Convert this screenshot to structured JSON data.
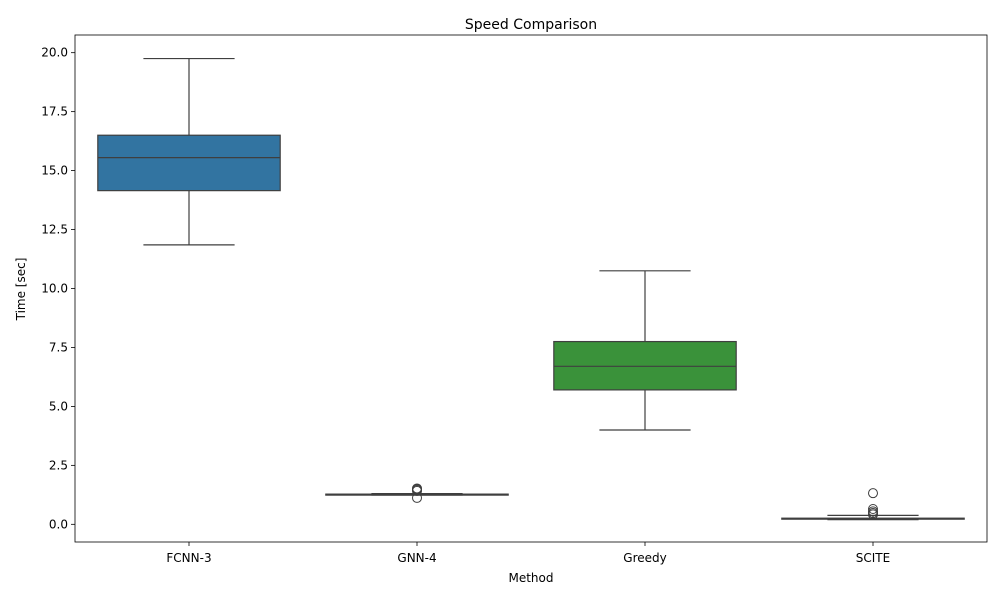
{
  "chart_data": {
    "type": "box",
    "title": "Speed Comparison",
    "xlabel": "Method",
    "ylabel": "Time [sec]",
    "ylim": [
      -0.75,
      20.75
    ],
    "yticks": [
      0.0,
      2.5,
      5.0,
      7.5,
      10.0,
      12.5,
      15.0,
      17.5,
      20.0
    ],
    "ytick_labels": [
      "0.0",
      "2.5",
      "5.0",
      "7.5",
      "10.0",
      "12.5",
      "15.0",
      "17.5",
      "20.0"
    ],
    "grid": false,
    "categories": [
      "FCNN-3",
      "GNN-4",
      "Greedy",
      "SCITE"
    ],
    "boxes": [
      {
        "category": "FCNN-3",
        "whisker_low": 11.85,
        "q1": 14.15,
        "median": 15.55,
        "q3": 16.5,
        "whisker_high": 19.75,
        "outliers": [],
        "color": "#3274a1"
      },
      {
        "category": "GNN-4",
        "whisker_low": 1.24,
        "q1": 1.26,
        "median": 1.27,
        "q3": 1.28,
        "whisker_high": 1.3,
        "outliers": [
          1.12,
          1.42,
          1.46,
          1.5,
          1.52
        ],
        "color": "#e1812c"
      },
      {
        "category": "Greedy",
        "whisker_low": 4.0,
        "q1": 5.7,
        "median": 6.7,
        "q3": 7.75,
        "whisker_high": 10.75,
        "outliers": [],
        "color": "#3a923a"
      },
      {
        "category": "SCITE",
        "whisker_low": 0.2,
        "q1": 0.22,
        "median": 0.24,
        "q3": 0.26,
        "whisker_high": 0.38,
        "outliers": [
          0.42,
          0.48,
          0.55,
          0.65,
          1.32
        ],
        "color": "#c03d3e"
      }
    ]
  }
}
